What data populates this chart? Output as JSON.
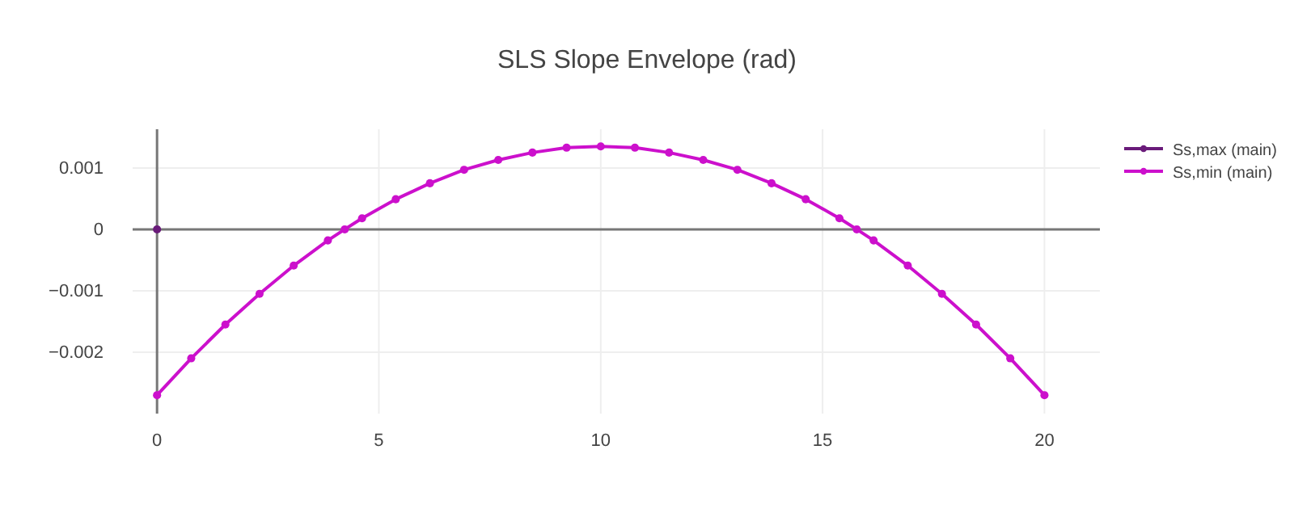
{
  "chart_data": {
    "type": "line",
    "title": "SLS Slope Envelope (rad)",
    "xlim": [
      -0.55,
      21.25
    ],
    "xticks": [
      0,
      5,
      10,
      15,
      20
    ],
    "ylim": [
      -0.003,
      0.00163
    ],
    "yticks": [
      {
        "value": -0.002,
        "label": "−0.002"
      },
      {
        "value": -0.001,
        "label": "−0.001"
      },
      0,
      0.001
    ],
    "grid": true,
    "legend": "right",
    "marker": "circle",
    "line_style": "solid",
    "series": [
      {
        "name": "Ss,max (main)",
        "color": "#6a1b7a",
        "x": [
          0
        ],
        "values": [
          0
        ]
      },
      {
        "name": "Ss,min (main)",
        "color": "#cc10cc",
        "x": [
          0,
          0.77,
          1.54,
          2.31,
          3.08,
          3.85,
          4.23,
          4.62,
          5.38,
          6.15,
          6.92,
          7.69,
          8.46,
          9.23,
          10,
          10.77,
          11.54,
          12.31,
          13.08,
          13.85,
          14.62,
          15.38,
          15.77,
          16.15,
          16.92,
          17.69,
          18.46,
          19.23,
          20
        ],
        "values": [
          -0.0027,
          -0.0021,
          -0.00155,
          -0.00105,
          -0.00059,
          -0.00018,
          0,
          0.00018,
          0.00049,
          0.00075,
          0.00097,
          0.00113,
          0.00125,
          0.00133,
          0.00135,
          0.00133,
          0.00125,
          0.00113,
          0.00097,
          0.00075,
          0.00049,
          0.00018,
          0,
          -0.00018,
          -0.00059,
          -0.00105,
          -0.00155,
          -0.0021,
          -0.0027
        ]
      }
    ]
  }
}
